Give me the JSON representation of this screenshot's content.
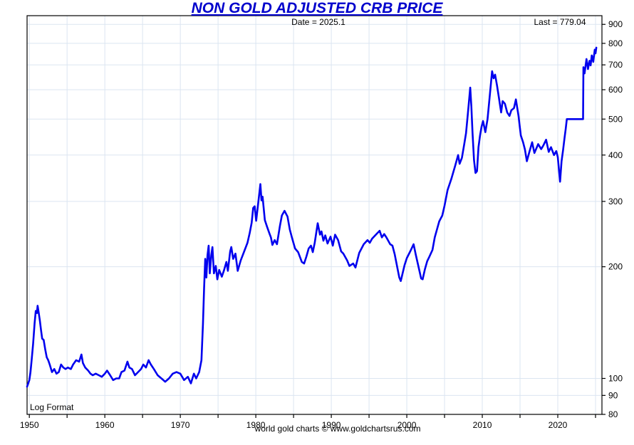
{
  "header": {
    "title": "NON GOLD ADJUSTED CRB PRICE",
    "date_annotation": "Date = 2025.1",
    "last_annotation": "Last = 779.04"
  },
  "plot": {
    "scale_label": "Log Format"
  },
  "footer": {
    "credit": "world gold charts © www.goldchartsrus.com"
  },
  "colors": {
    "title": "#0000CC",
    "line": "#0000EE",
    "grid": "#DBE5F1",
    "axis": "#000000",
    "text": "#000000",
    "background": "#FFFFFF"
  },
  "chart_data": {
    "type": "line",
    "title": "NON GOLD ADJUSTED CRB PRICE",
    "scale_note": "Log Format",
    "last_date": 2025.1,
    "last_value": 779.04,
    "x_axis": {
      "labeled_ticks": [
        1950,
        1960,
        1970,
        1980,
        1990,
        2000,
        2010,
        2020
      ],
      "minor_ticks": [
        1955,
        1965,
        1975,
        1985,
        1995,
        2005,
        2015,
        2025
      ],
      "range": [
        1949.7,
        2025.85
      ]
    },
    "y_axis": {
      "scale": "log",
      "ticks": [
        900,
        800,
        700,
        600,
        500,
        400,
        300,
        200,
        100,
        90,
        80
      ],
      "range": [
        80,
        950
      ],
      "labels_side": "right"
    },
    "grid": true,
    "legend": "none",
    "series": [
      {
        "name": "Non Gold Adjusted CRB Price",
        "points": [
          [
            1949.7,
            95
          ],
          [
            1949.85,
            97
          ],
          [
            1950,
            99
          ],
          [
            1950.15,
            104
          ],
          [
            1950.3,
            112
          ],
          [
            1950.5,
            124
          ],
          [
            1950.7,
            141
          ],
          [
            1950.85,
            152
          ],
          [
            1951,
            150
          ],
          [
            1951.1,
            157
          ],
          [
            1951.25,
            150
          ],
          [
            1951.4,
            143
          ],
          [
            1951.55,
            135
          ],
          [
            1951.7,
            128
          ],
          [
            1951.9,
            127
          ],
          [
            1952.1,
            120
          ],
          [
            1952.3,
            114
          ],
          [
            1952.5,
            112
          ],
          [
            1952.7,
            109
          ],
          [
            1953,
            104
          ],
          [
            1953.3,
            106
          ],
          [
            1953.6,
            103
          ],
          [
            1953.9,
            104
          ],
          [
            1954.2,
            109
          ],
          [
            1954.5,
            107
          ],
          [
            1954.8,
            106
          ],
          [
            1955.1,
            107
          ],
          [
            1955.5,
            106
          ],
          [
            1955.8,
            109
          ],
          [
            1956.2,
            112
          ],
          [
            1956.6,
            111
          ],
          [
            1956.9,
            116
          ],
          [
            1957.1,
            110
          ],
          [
            1957.4,
            107
          ],
          [
            1957.8,
            105
          ],
          [
            1958.1,
            103
          ],
          [
            1958.4,
            102
          ],
          [
            1958.8,
            103
          ],
          [
            1959.2,
            102
          ],
          [
            1959.6,
            101
          ],
          [
            1960,
            103
          ],
          [
            1960.3,
            105
          ],
          [
            1960.7,
            102
          ],
          [
            1961.1,
            99
          ],
          [
            1961.5,
            100
          ],
          [
            1961.9,
            100
          ],
          [
            1962.2,
            104
          ],
          [
            1962.6,
            105
          ],
          [
            1963,
            111
          ],
          [
            1963.25,
            107
          ],
          [
            1963.6,
            106
          ],
          [
            1964,
            102
          ],
          [
            1964.4,
            104
          ],
          [
            1964.8,
            106
          ],
          [
            1965.1,
            109
          ],
          [
            1965.45,
            107
          ],
          [
            1965.8,
            112
          ],
          [
            1966.1,
            109
          ],
          [
            1966.5,
            106
          ],
          [
            1967,
            102
          ],
          [
            1967.5,
            100
          ],
          [
            1968,
            98
          ],
          [
            1968.5,
            100
          ],
          [
            1969,
            103
          ],
          [
            1969.5,
            104
          ],
          [
            1970,
            103
          ],
          [
            1970.5,
            99
          ],
          [
            1971,
            101
          ],
          [
            1971.4,
            97
          ],
          [
            1971.8,
            103
          ],
          [
            1972.1,
            100
          ],
          [
            1972.5,
            104
          ],
          [
            1972.8,
            112
          ],
          [
            1973,
            140
          ],
          [
            1973.15,
            175
          ],
          [
            1973.3,
            210
          ],
          [
            1973.45,
            187
          ],
          [
            1973.6,
            215
          ],
          [
            1973.75,
            228
          ],
          [
            1973.9,
            192
          ],
          [
            1974.1,
            215
          ],
          [
            1974.25,
            226
          ],
          [
            1974.45,
            192
          ],
          [
            1974.7,
            201
          ],
          [
            1974.9,
            185
          ],
          [
            1975.15,
            196
          ],
          [
            1975.5,
            188
          ],
          [
            1975.8,
            196
          ],
          [
            1976.1,
            206
          ],
          [
            1976.3,
            195
          ],
          [
            1976.6,
            220
          ],
          [
            1976.75,
            226
          ],
          [
            1977,
            210
          ],
          [
            1977.3,
            217
          ],
          [
            1977.6,
            195
          ],
          [
            1978,
            208
          ],
          [
            1978.5,
            221
          ],
          [
            1978.9,
            232
          ],
          [
            1979.2,
            247
          ],
          [
            1979.45,
            263
          ],
          [
            1979.65,
            288
          ],
          [
            1979.85,
            291
          ],
          [
            1980.05,
            266
          ],
          [
            1980.3,
            295
          ],
          [
            1980.6,
            334
          ],
          [
            1980.75,
            302
          ],
          [
            1980.9,
            309
          ],
          [
            1981.2,
            267
          ],
          [
            1981.5,
            256
          ],
          [
            1981.8,
            246
          ],
          [
            1982,
            240
          ],
          [
            1982.2,
            229
          ],
          [
            1982.5,
            236
          ],
          [
            1982.8,
            230
          ],
          [
            1983.2,
            258
          ],
          [
            1983.45,
            275
          ],
          [
            1983.8,
            283
          ],
          [
            1984.2,
            273
          ],
          [
            1984.5,
            252
          ],
          [
            1984.8,
            239
          ],
          [
            1985.2,
            224
          ],
          [
            1985.6,
            219
          ],
          [
            1986.1,
            206
          ],
          [
            1986.4,
            204
          ],
          [
            1986.7,
            213
          ],
          [
            1987,
            224
          ],
          [
            1987.3,
            228
          ],
          [
            1987.55,
            219
          ],
          [
            1987.8,
            232
          ],
          [
            1988.2,
            262
          ],
          [
            1988.5,
            244
          ],
          [
            1988.7,
            249
          ],
          [
            1988.95,
            235
          ],
          [
            1989.2,
            243
          ],
          [
            1989.5,
            231
          ],
          [
            1989.9,
            241
          ],
          [
            1990.2,
            228
          ],
          [
            1990.5,
            244
          ],
          [
            1990.9,
            236
          ],
          [
            1991.3,
            220
          ],
          [
            1991.6,
            217
          ],
          [
            1992.1,
            208
          ],
          [
            1992.4,
            201
          ],
          [
            1992.9,
            204
          ],
          [
            1993.2,
            199
          ],
          [
            1993.7,
            218
          ],
          [
            1994,
            224
          ],
          [
            1994.3,
            230
          ],
          [
            1994.8,
            236
          ],
          [
            1995.1,
            232
          ],
          [
            1995.4,
            238
          ],
          [
            1995.9,
            244
          ],
          [
            1996.4,
            250
          ],
          [
            1996.7,
            240
          ],
          [
            1997,
            245
          ],
          [
            1997.3,
            240
          ],
          [
            1997.8,
            230
          ],
          [
            1998.1,
            228
          ],
          [
            1998.4,
            216
          ],
          [
            1998.7,
            201
          ],
          [
            1999,
            187
          ],
          [
            1999.2,
            183
          ],
          [
            1999.7,
            202
          ],
          [
            2000,
            211
          ],
          [
            2000.5,
            221
          ],
          [
            2000.9,
            230
          ],
          [
            2001.2,
            215
          ],
          [
            2001.5,
            202
          ],
          [
            2001.9,
            186
          ],
          [
            2002.1,
            185
          ],
          [
            2002.4,
            197
          ],
          [
            2002.7,
            207
          ],
          [
            2003,
            213
          ],
          [
            2003.4,
            222
          ],
          [
            2003.7,
            240
          ],
          [
            2004,
            252
          ],
          [
            2004.3,
            265
          ],
          [
            2004.7,
            275
          ],
          [
            2005,
            292
          ],
          [
            2005.4,
            322
          ],
          [
            2005.9,
            345
          ],
          [
            2006.4,
            374
          ],
          [
            2006.8,
            400
          ],
          [
            2007,
            379
          ],
          [
            2007.3,
            393
          ],
          [
            2007.6,
            427
          ],
          [
            2007.85,
            458
          ],
          [
            2008.1,
            520
          ],
          [
            2008.4,
            608
          ],
          [
            2008.55,
            540
          ],
          [
            2008.7,
            460
          ],
          [
            2008.9,
            388
          ],
          [
            2009.1,
            358
          ],
          [
            2009.3,
            362
          ],
          [
            2009.5,
            420
          ],
          [
            2009.7,
            452
          ],
          [
            2009.9,
            477
          ],
          [
            2010.1,
            494
          ],
          [
            2010.4,
            461
          ],
          [
            2010.7,
            500
          ],
          [
            2011,
            580
          ],
          [
            2011.3,
            673
          ],
          [
            2011.5,
            644
          ],
          [
            2011.7,
            659
          ],
          [
            2011.95,
            616
          ],
          [
            2012.2,
            572
          ],
          [
            2012.5,
            521
          ],
          [
            2012.7,
            559
          ],
          [
            2013,
            550
          ],
          [
            2013.3,
            521
          ],
          [
            2013.6,
            510
          ],
          [
            2013.85,
            528
          ],
          [
            2014.2,
            535
          ],
          [
            2014.45,
            565
          ],
          [
            2014.8,
            510
          ],
          [
            2015.1,
            452
          ],
          [
            2015.4,
            433
          ],
          [
            2015.65,
            414
          ],
          [
            2015.9,
            385
          ],
          [
            2016.2,
            405
          ],
          [
            2016.6,
            433
          ],
          [
            2016.9,
            405
          ],
          [
            2017.4,
            428
          ],
          [
            2017.8,
            415
          ],
          [
            2018.1,
            425
          ],
          [
            2018.45,
            440
          ],
          [
            2018.8,
            408
          ],
          [
            2019.1,
            420
          ],
          [
            2019.5,
            400
          ],
          [
            2019.8,
            410
          ],
          [
            2020,
            395
          ],
          [
            2020.3,
            339
          ],
          [
            2020.5,
            385
          ],
          [
            2020.7,
            412
          ],
          [
            2020.9,
            445
          ],
          [
            2021.05,
            470
          ],
          [
            2021.2,
            500
          ],
          [
            2023.35,
            500
          ],
          [
            2023.4,
            690
          ],
          [
            2023.55,
            664
          ],
          [
            2023.8,
            726
          ],
          [
            2024,
            682
          ],
          [
            2024.2,
            718
          ],
          [
            2024.35,
            698
          ],
          [
            2024.5,
            742
          ],
          [
            2024.7,
            713
          ],
          [
            2024.9,
            769
          ],
          [
            2025,
            752
          ],
          [
            2025.1,
            779
          ]
        ]
      }
    ]
  }
}
